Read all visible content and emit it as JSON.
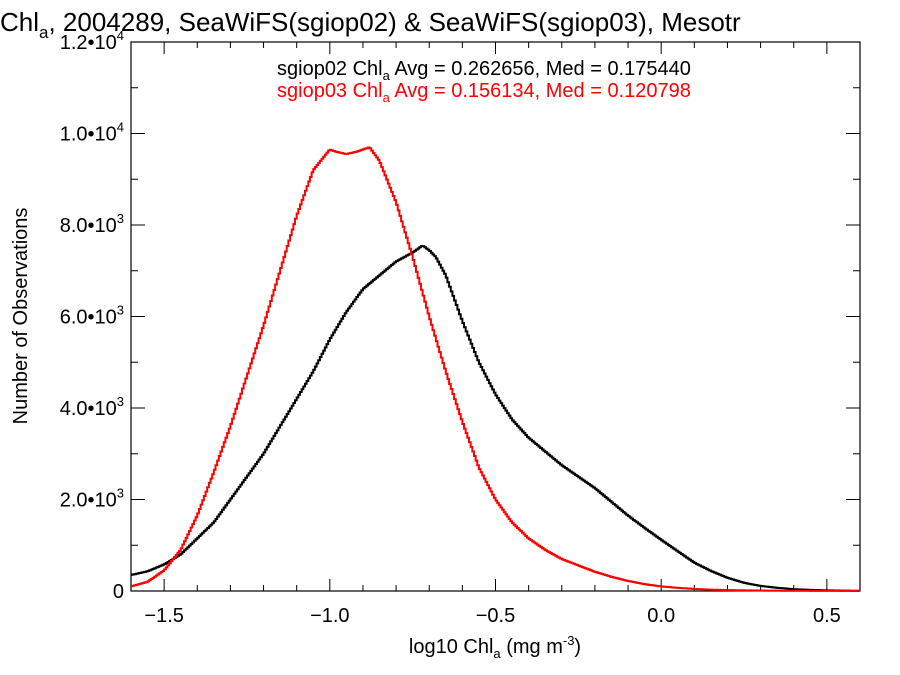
{
  "chart_data": {
    "type": "line",
    "title": {
      "prefix": "Chl",
      "sub": "a",
      "rest": ", 2004289, SeaWiFS(sgiop02) & SeaWiFS(sgiop03), Mesotr"
    },
    "xlabel": {
      "prefix": "log10 Chl",
      "sub": "a",
      "mid": " (mg m",
      "sup": "-3",
      "suffix": ")"
    },
    "ylabel": "Number of Observations",
    "xlim": [
      -1.6,
      0.6
    ],
    "ylim": [
      0,
      12000
    ],
    "x_ticks": [
      {
        "value": -1.5,
        "label": "−1.5"
      },
      {
        "value": -1.0,
        "label": "−1.0"
      },
      {
        "value": -0.5,
        "label": "−0.5"
      },
      {
        "value": 0.0,
        "label": "0.0"
      },
      {
        "value": 0.5,
        "label": "0.5"
      }
    ],
    "y_ticks": [
      {
        "value": 0,
        "mantissa": "0",
        "exp": ""
      },
      {
        "value": 2000,
        "mantissa": "2.0•10",
        "exp": "3"
      },
      {
        "value": 4000,
        "mantissa": "4.0•10",
        "exp": "3"
      },
      {
        "value": 6000,
        "mantissa": "6.0•10",
        "exp": "3"
      },
      {
        "value": 8000,
        "mantissa": "8.0•10",
        "exp": "3"
      },
      {
        "value": 10000,
        "mantissa": "1.0•10",
        "exp": "4"
      },
      {
        "value": 12000,
        "mantissa": "1.2•10",
        "exp": "4"
      }
    ],
    "annotations": [
      {
        "prefix": "sgiop02 Chl",
        "sub": "a",
        "rest": " Avg = 0.262656, Med = 0.175440",
        "color": "#000000"
      },
      {
        "prefix": "sgiop03 Chl",
        "sub": "a",
        "rest": " Avg = 0.156134, Med = 0.120798",
        "color": "#ff0000"
      }
    ],
    "series": [
      {
        "color": "#000000",
        "x": [
          -1.6,
          -1.55,
          -1.5,
          -1.45,
          -1.4,
          -1.35,
          -1.3,
          -1.25,
          -1.2,
          -1.15,
          -1.1,
          -1.05,
          -1.0,
          -0.95,
          -0.9,
          -0.85,
          -0.8,
          -0.75,
          -0.72,
          -0.7,
          -0.68,
          -0.65,
          -0.6,
          -0.55,
          -0.5,
          -0.45,
          -0.4,
          -0.35,
          -0.3,
          -0.25,
          -0.2,
          -0.15,
          -0.1,
          -0.05,
          0.0,
          0.05,
          0.1,
          0.15,
          0.2,
          0.25,
          0.3,
          0.35,
          0.4,
          0.45,
          0.5,
          0.55,
          0.6
        ],
        "y": [
          350,
          430,
          580,
          800,
          1150,
          1500,
          2000,
          2500,
          3000,
          3600,
          4200,
          4800,
          5500,
          6100,
          6600,
          6900,
          7200,
          7400,
          7550,
          7450,
          7300,
          6900,
          5900,
          5000,
          4300,
          3750,
          3350,
          3050,
          2750,
          2500,
          2250,
          1950,
          1650,
          1380,
          1120,
          870,
          620,
          440,
          290,
          180,
          110,
          70,
          40,
          25,
          15,
          8,
          5
        ]
      },
      {
        "color": "#ff0000",
        "x": [
          -1.6,
          -1.55,
          -1.5,
          -1.45,
          -1.4,
          -1.35,
          -1.3,
          -1.25,
          -1.2,
          -1.15,
          -1.1,
          -1.05,
          -1.0,
          -0.98,
          -0.95,
          -0.92,
          -0.9,
          -0.88,
          -0.85,
          -0.8,
          -0.75,
          -0.7,
          -0.65,
          -0.6,
          -0.55,
          -0.5,
          -0.45,
          -0.4,
          -0.35,
          -0.3,
          -0.25,
          -0.2,
          -0.15,
          -0.1,
          -0.05,
          0.0,
          0.05,
          0.1,
          0.15,
          0.2,
          0.3,
          0.4,
          0.5,
          0.6
        ],
        "y": [
          100,
          200,
          450,
          900,
          1650,
          2600,
          3600,
          4700,
          5800,
          7000,
          8200,
          9200,
          9650,
          9600,
          9550,
          9600,
          9650,
          9700,
          9400,
          8500,
          7300,
          6000,
          4800,
          3700,
          2700,
          2000,
          1500,
          1150,
          900,
          700,
          560,
          420,
          310,
          220,
          150,
          100,
          70,
          45,
          30,
          20,
          10,
          5,
          3,
          2
        ]
      }
    ]
  }
}
